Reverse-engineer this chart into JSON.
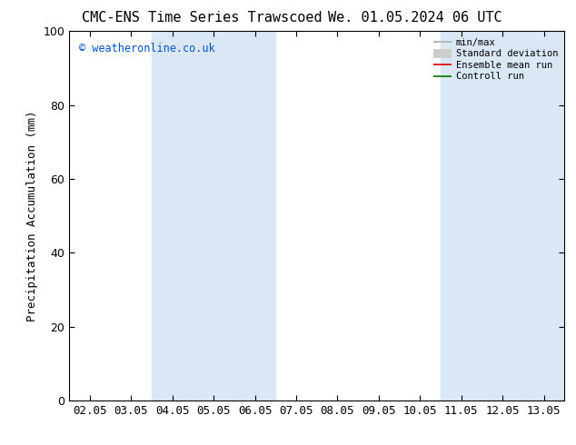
{
  "title_left": "CMC-ENS Time Series Trawscoed",
  "title_right": "We. 01.05.2024 06 UTC",
  "ylabel": "Precipitation Accumulation (mm)",
  "ylim": [
    0,
    100
  ],
  "yticks": [
    0,
    20,
    40,
    60,
    80,
    100
  ],
  "x_labels": [
    "02.05",
    "03.05",
    "04.05",
    "05.05",
    "06.05",
    "07.05",
    "08.05",
    "09.05",
    "10.05",
    "11.05",
    "12.05",
    "13.05"
  ],
  "shaded_regions": [
    {
      "xstart": 2,
      "xend": 4,
      "color": "#dae8f5"
    },
    {
      "xstart": 9,
      "xend": 11,
      "color": "#dae8f5"
    }
  ],
  "watermark": "© weatheronline.co.uk",
  "watermark_color": "#0055cc",
  "legend_items": [
    {
      "label": "min/max",
      "color": "#aaaaaa",
      "lw": 1.2
    },
    {
      "label": "Standard deviation",
      "color": "#cccccc",
      "lw": 7
    },
    {
      "label": "Ensemble mean run",
      "color": "#dd0000",
      "lw": 1.2
    },
    {
      "label": "Controll run",
      "color": "#007700",
      "lw": 1.2
    }
  ],
  "background_color": "#ffffff",
  "spine_color": "#000000",
  "title_fontsize": 11,
  "tick_fontsize": 9,
  "ylabel_fontsize": 9
}
